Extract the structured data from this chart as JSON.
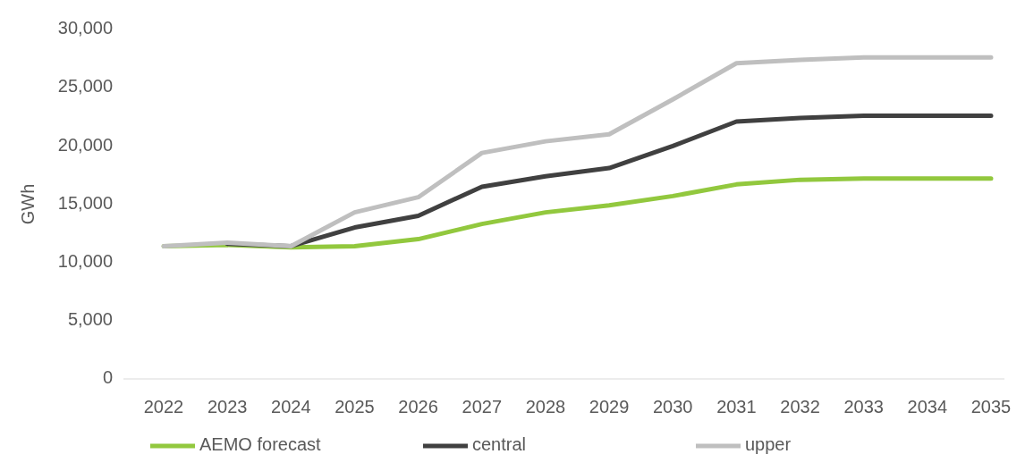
{
  "chart_data": {
    "type": "line",
    "ylabel": "GWh",
    "categories": [
      "2022",
      "2023",
      "2024",
      "2025",
      "2026",
      "2027",
      "2028",
      "2029",
      "2030",
      "2031",
      "2032",
      "2033",
      "2034",
      "2035"
    ],
    "ylim": [
      0,
      30000
    ],
    "yticks": [
      {
        "value": 0,
        "label": "0"
      },
      {
        "value": 5000,
        "label": "5,000"
      },
      {
        "value": 10000,
        "label": "10,000"
      },
      {
        "value": 15000,
        "label": "15,000"
      },
      {
        "value": 20000,
        "label": "20,000"
      },
      {
        "value": 25000,
        "label": "25,000"
      },
      {
        "value": 30000,
        "label": "30,000"
      }
    ],
    "legend": "bottom",
    "line_style": "solid",
    "marker": "none",
    "series": [
      {
        "name": "AEMO forecast",
        "color": "#92c83e",
        "values": [
          11400,
          11500,
          11300,
          11400,
          12000,
          13300,
          14300,
          14900,
          15700,
          16700,
          17100,
          17200,
          17200,
          17200
        ]
      },
      {
        "name": "central",
        "color": "#404040",
        "values": [
          null,
          11600,
          11400,
          13000,
          14000,
          16500,
          17400,
          18100,
          20000,
          22100,
          22400,
          22600,
          22600,
          22600
        ]
      },
      {
        "name": "upper",
        "color": "#bfbfbf",
        "values": [
          11400,
          11700,
          11400,
          14300,
          15600,
          19400,
          20400,
          21000,
          24000,
          27100,
          27400,
          27600,
          27600,
          27600
        ]
      }
    ]
  }
}
